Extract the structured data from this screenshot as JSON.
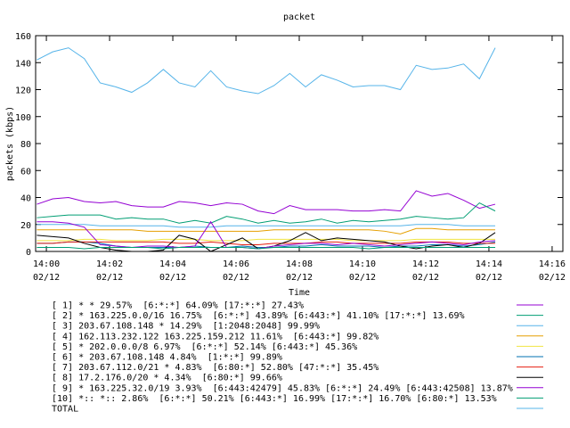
{
  "chart_data": {
    "type": "line",
    "title": "packet",
    "xlabel": "Time",
    "ylabel": "packets (kbps)",
    "xlim": [
      -0.34,
      16.34
    ],
    "ylim": [
      0,
      160
    ],
    "yticks": [
      0,
      20,
      40,
      60,
      80,
      100,
      120,
      140,
      160
    ],
    "xticks": [
      {
        "value": 0,
        "label": [
          "14:00",
          "02/12"
        ]
      },
      {
        "value": 2,
        "label": [
          "14:02",
          "02/12"
        ]
      },
      {
        "value": 4,
        "label": [
          "14:04",
          "02/12"
        ]
      },
      {
        "value": 6,
        "label": [
          "14:06",
          "02/12"
        ]
      },
      {
        "value": 8,
        "label": [
          "14:08",
          "02/12"
        ]
      },
      {
        "value": 10,
        "label": [
          "14:10",
          "02/12"
        ]
      },
      {
        "value": 12,
        "label": [
          "14:12",
          "02/12"
        ]
      },
      {
        "value": 14,
        "label": [
          "14:14",
          "02/12"
        ]
      },
      {
        "value": 16,
        "label": [
          "14:16",
          "02/12"
        ]
      }
    ],
    "grid": false,
    "legend": "bottom",
    "x": [
      -0.3,
      0.2,
      0.7,
      1.2,
      1.7,
      2.2,
      2.7,
      3.2,
      3.7,
      4.2,
      4.7,
      5.2,
      5.7,
      6.2,
      6.7,
      7.2,
      7.7,
      8.2,
      8.7,
      9.2,
      9.7,
      10.2,
      10.7,
      11.2,
      11.7,
      12.2,
      12.7,
      13.2,
      13.7,
      14.2
    ],
    "series": [
      {
        "name": "[ 1] * * 29.57%  [6:*:*] 64.09% [17:*:*] 27.43%",
        "color": "#9400d3",
        "values": [
          35,
          39,
          40,
          37,
          36,
          37,
          34,
          33,
          33,
          37,
          36,
          34,
          36,
          35,
          30,
          28,
          34,
          31,
          31,
          31,
          30,
          30,
          31,
          30,
          45,
          41,
          43,
          38,
          32,
          35
        ]
      },
      {
        "name": "[ 2] * 163.225.0.0/16 16.75%  [6:*:*] 43.89% [6:443:*] 41.10% [17:*:*] 13.69%",
        "color": "#009e73",
        "values": [
          25,
          26,
          27,
          27,
          27,
          24,
          25,
          24,
          24,
          21,
          23,
          21,
          26,
          24,
          21,
          23,
          21,
          22,
          24,
          21,
          23,
          22,
          23,
          24,
          26,
          25,
          24,
          25,
          36,
          30
        ]
      },
      {
        "name": "[ 3] 203.67.108.148 * 14.29%  [1:2048:2048] 99.99%",
        "color": "#56b4e9",
        "values": [
          20,
          20,
          20,
          20,
          19,
          19,
          19,
          19,
          19,
          18,
          18,
          18,
          19,
          19,
          19,
          19,
          19,
          19,
          19,
          19,
          19,
          19,
          19,
          19,
          20,
          20,
          20,
          19,
          19,
          19
        ]
      },
      {
        "name": "[ 4] 162.113.232.122 163.225.159.212 11.61%  [6:443:*] 99.82%",
        "color": "#e69f00",
        "values": [
          16,
          16,
          16,
          16,
          16,
          16,
          16,
          15,
          15,
          15,
          15,
          15,
          15,
          15,
          15,
          16,
          16,
          16,
          16,
          16,
          16,
          16,
          15,
          13,
          17,
          17,
          16,
          16,
          16,
          16
        ]
      },
      {
        "name": "[ 5] * 202.0.0.0/8 6.97%  [6:*:*] 52.14% [6:443:*] 45.36%",
        "color": "#f0e442",
        "values": [
          8,
          8,
          8,
          9,
          9,
          8,
          8,
          8,
          9,
          9,
          9,
          8,
          8,
          8,
          9,
          9,
          9,
          9,
          9,
          9,
          8,
          8,
          8,
          8,
          9,
          9,
          9,
          9,
          9,
          9
        ]
      },
      {
        "name": "[ 6] * 203.67.108.148 4.84%  [1:*:*] 99.89%",
        "color": "#0072b2",
        "values": [
          6,
          6,
          7,
          7,
          6,
          4,
          3,
          3,
          3,
          3,
          4,
          3,
          3,
          4,
          3,
          3,
          4,
          4,
          5,
          4,
          4,
          4,
          3,
          4,
          4,
          5,
          5,
          4,
          5,
          7
        ]
      },
      {
        "name": "[ 7] 203.67.112.0/21 * 4.83%  [6:80:*] 52.80% [47:*:*] 35.45%",
        "color": "#e51e10",
        "values": [
          6,
          6,
          7,
          7,
          7,
          7,
          7,
          7,
          7,
          6,
          6,
          7,
          6,
          5,
          5,
          6,
          6,
          6,
          7,
          7,
          6,
          6,
          6,
          6,
          7,
          7,
          7,
          6,
          6,
          6
        ]
      },
      {
        "name": "[ 8] 17.2.176.0/20 * 4.34%  [6:80:*] 99.66%",
        "color": "#000000",
        "values": [
          12,
          11,
          10,
          6,
          3,
          1,
          0,
          0,
          1,
          12,
          9,
          0,
          5,
          10,
          2,
          4,
          8,
          14,
          8,
          10,
          9,
          8,
          7,
          4,
          2,
          4,
          5,
          3,
          6,
          14
        ]
      },
      {
        "name": "[ 9] * 163.225.32.0/19 3.93%  [6:443:42479] 45.83% [6:*:*] 24.49% [6:443:42508] 13.87%",
        "color": "#9400d3",
        "values": [
          22,
          22,
          21,
          18,
          5,
          4,
          3,
          4,
          4,
          3,
          4,
          22,
          3,
          3,
          2,
          4,
          5,
          6,
          6,
          5,
          6,
          5,
          4,
          5,
          6,
          7,
          6,
          5,
          7,
          8
        ]
      },
      {
        "name": "[10] *:: *:: 2.86%  [6:*:*] 50.21% [6:443:*] 16.99% [17:*:*] 16.70% [6:80:*] 13.53%",
        "color": "#009e73",
        "values": [
          3,
          3,
          3,
          2,
          3,
          3,
          3,
          3,
          2,
          3,
          3,
          3,
          3,
          3,
          2,
          3,
          3,
          3,
          3,
          3,
          3,
          2,
          3,
          3,
          3,
          3,
          3,
          3,
          3,
          3
        ]
      },
      {
        "name": "TOTAL",
        "color": "#56b4e9",
        "values": [
          142,
          148,
          151,
          143,
          125,
          122,
          118,
          125,
          135,
          125,
          122,
          134,
          122,
          119,
          117,
          123,
          132,
          122,
          131,
          127,
          122,
          123,
          123,
          120,
          138,
          135,
          136,
          139,
          128,
          151
        ]
      }
    ]
  }
}
